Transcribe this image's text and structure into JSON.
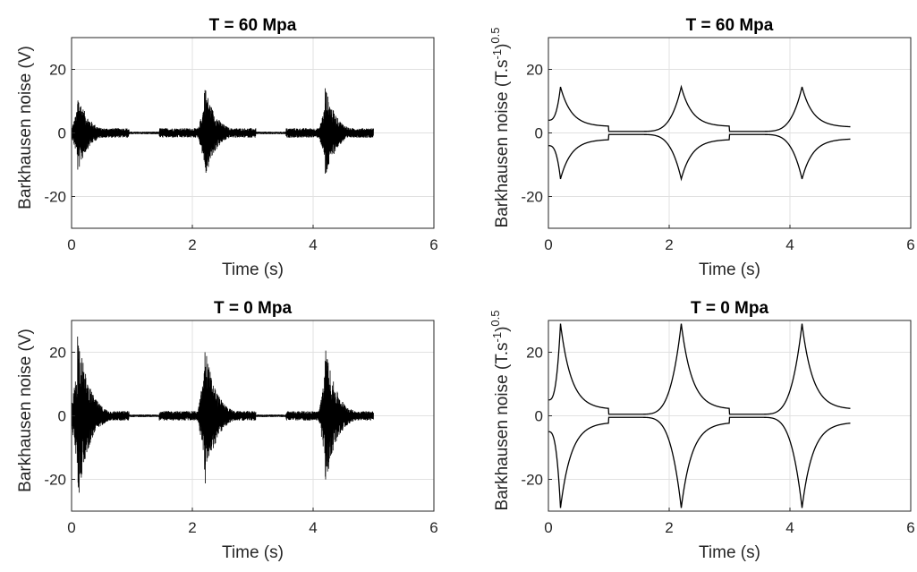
{
  "chart_data": [
    {
      "type": "line",
      "title": "T = 60 Mpa",
      "xlabel": "Time (s)",
      "ylabel": "Barkhausen noise (V)",
      "ylabel_sup": "",
      "xlim": [
        0,
        6
      ],
      "ylim": [
        -30,
        30
      ],
      "xticks": [
        0,
        2,
        4,
        6
      ],
      "yticks": [
        -20,
        0,
        20
      ],
      "grid": true,
      "series": [
        {
          "kind": "noise",
          "color": "#000000",
          "duration": 5,
          "bursts": [
            {
              "t": 0.1,
              "amp": 13
            },
            {
              "t": 2.2,
              "amp": 16
            },
            {
              "t": 4.2,
              "amp": 15
            }
          ],
          "baseline": 1.5
        }
      ]
    },
    {
      "type": "line",
      "title": "T = 60 Mpa",
      "xlabel": "Time (s)",
      "ylabel": "Barkhausen noise (T.s",
      "ylabel_sup": "-1",
      "ylabel_tail": ")",
      "ylabel_sup2": "0.5",
      "xlim": [
        0,
        6
      ],
      "ylim": [
        -30,
        30
      ],
      "xticks": [
        0,
        2,
        4,
        6
      ],
      "yticks": [
        -20,
        0,
        20
      ],
      "grid": true,
      "series": [
        {
          "kind": "envelope",
          "color": "#000000",
          "peaks": [
            {
              "t": 0.2,
              "y": 14.5,
              "dir": "falling",
              "end": 1.0,
              "end_y": 2
            },
            {
              "t": 2.2,
              "y": 14.5,
              "dir": "both",
              "start": 1.5,
              "start_y": 0.5,
              "end": 3.0,
              "end_y": 2
            },
            {
              "t": 4.2,
              "y": 14.5,
              "dir": "both",
              "start": 3.5,
              "start_y": 0.5,
              "end": 5.0,
              "end_y": 1.8
            }
          ],
          "start_y": 4
        }
      ]
    },
    {
      "type": "line",
      "title": "T = 0 Mpa",
      "xlabel": "Time (s)",
      "ylabel": "Barkhausen noise (V)",
      "ylabel_sup": "",
      "xlim": [
        0,
        6
      ],
      "ylim": [
        -30,
        30
      ],
      "xticks": [
        0,
        2,
        4,
        6
      ],
      "yticks": [
        -20,
        0,
        20
      ],
      "grid": true,
      "series": [
        {
          "kind": "noise",
          "color": "#000000",
          "duration": 5,
          "bursts": [
            {
              "t": 0.1,
              "amp": 28
            },
            {
              "t": 2.2,
              "amp": 24
            },
            {
              "t": 4.2,
              "amp": 23
            }
          ],
          "baseline": 1.5
        }
      ]
    },
    {
      "type": "line",
      "title": "T = 0 Mpa",
      "xlabel": "Time (s)",
      "ylabel": "Barkhausen noise (T.s",
      "ylabel_sup": "-1",
      "ylabel_tail": ")",
      "ylabel_sup2": "0.5",
      "xlim": [
        0,
        6
      ],
      "ylim": [
        -30,
        30
      ],
      "xticks": [
        0,
        2,
        4,
        6
      ],
      "yticks": [
        -20,
        0,
        20
      ],
      "grid": true,
      "series": [
        {
          "kind": "envelope",
          "color": "#000000",
          "peaks": [
            {
              "t": 0.2,
              "y": 29,
              "dir": "falling",
              "end": 1.0,
              "end_y": 2
            },
            {
              "t": 2.2,
              "y": 29,
              "dir": "both",
              "start": 1.5,
              "start_y": 0.5,
              "end": 3.0,
              "end_y": 2
            },
            {
              "t": 4.2,
              "y": 29,
              "dir": "both",
              "start": 3.5,
              "start_y": 0.5,
              "end": 5.0,
              "end_y": 2
            }
          ],
          "start_y": 5
        }
      ]
    }
  ]
}
